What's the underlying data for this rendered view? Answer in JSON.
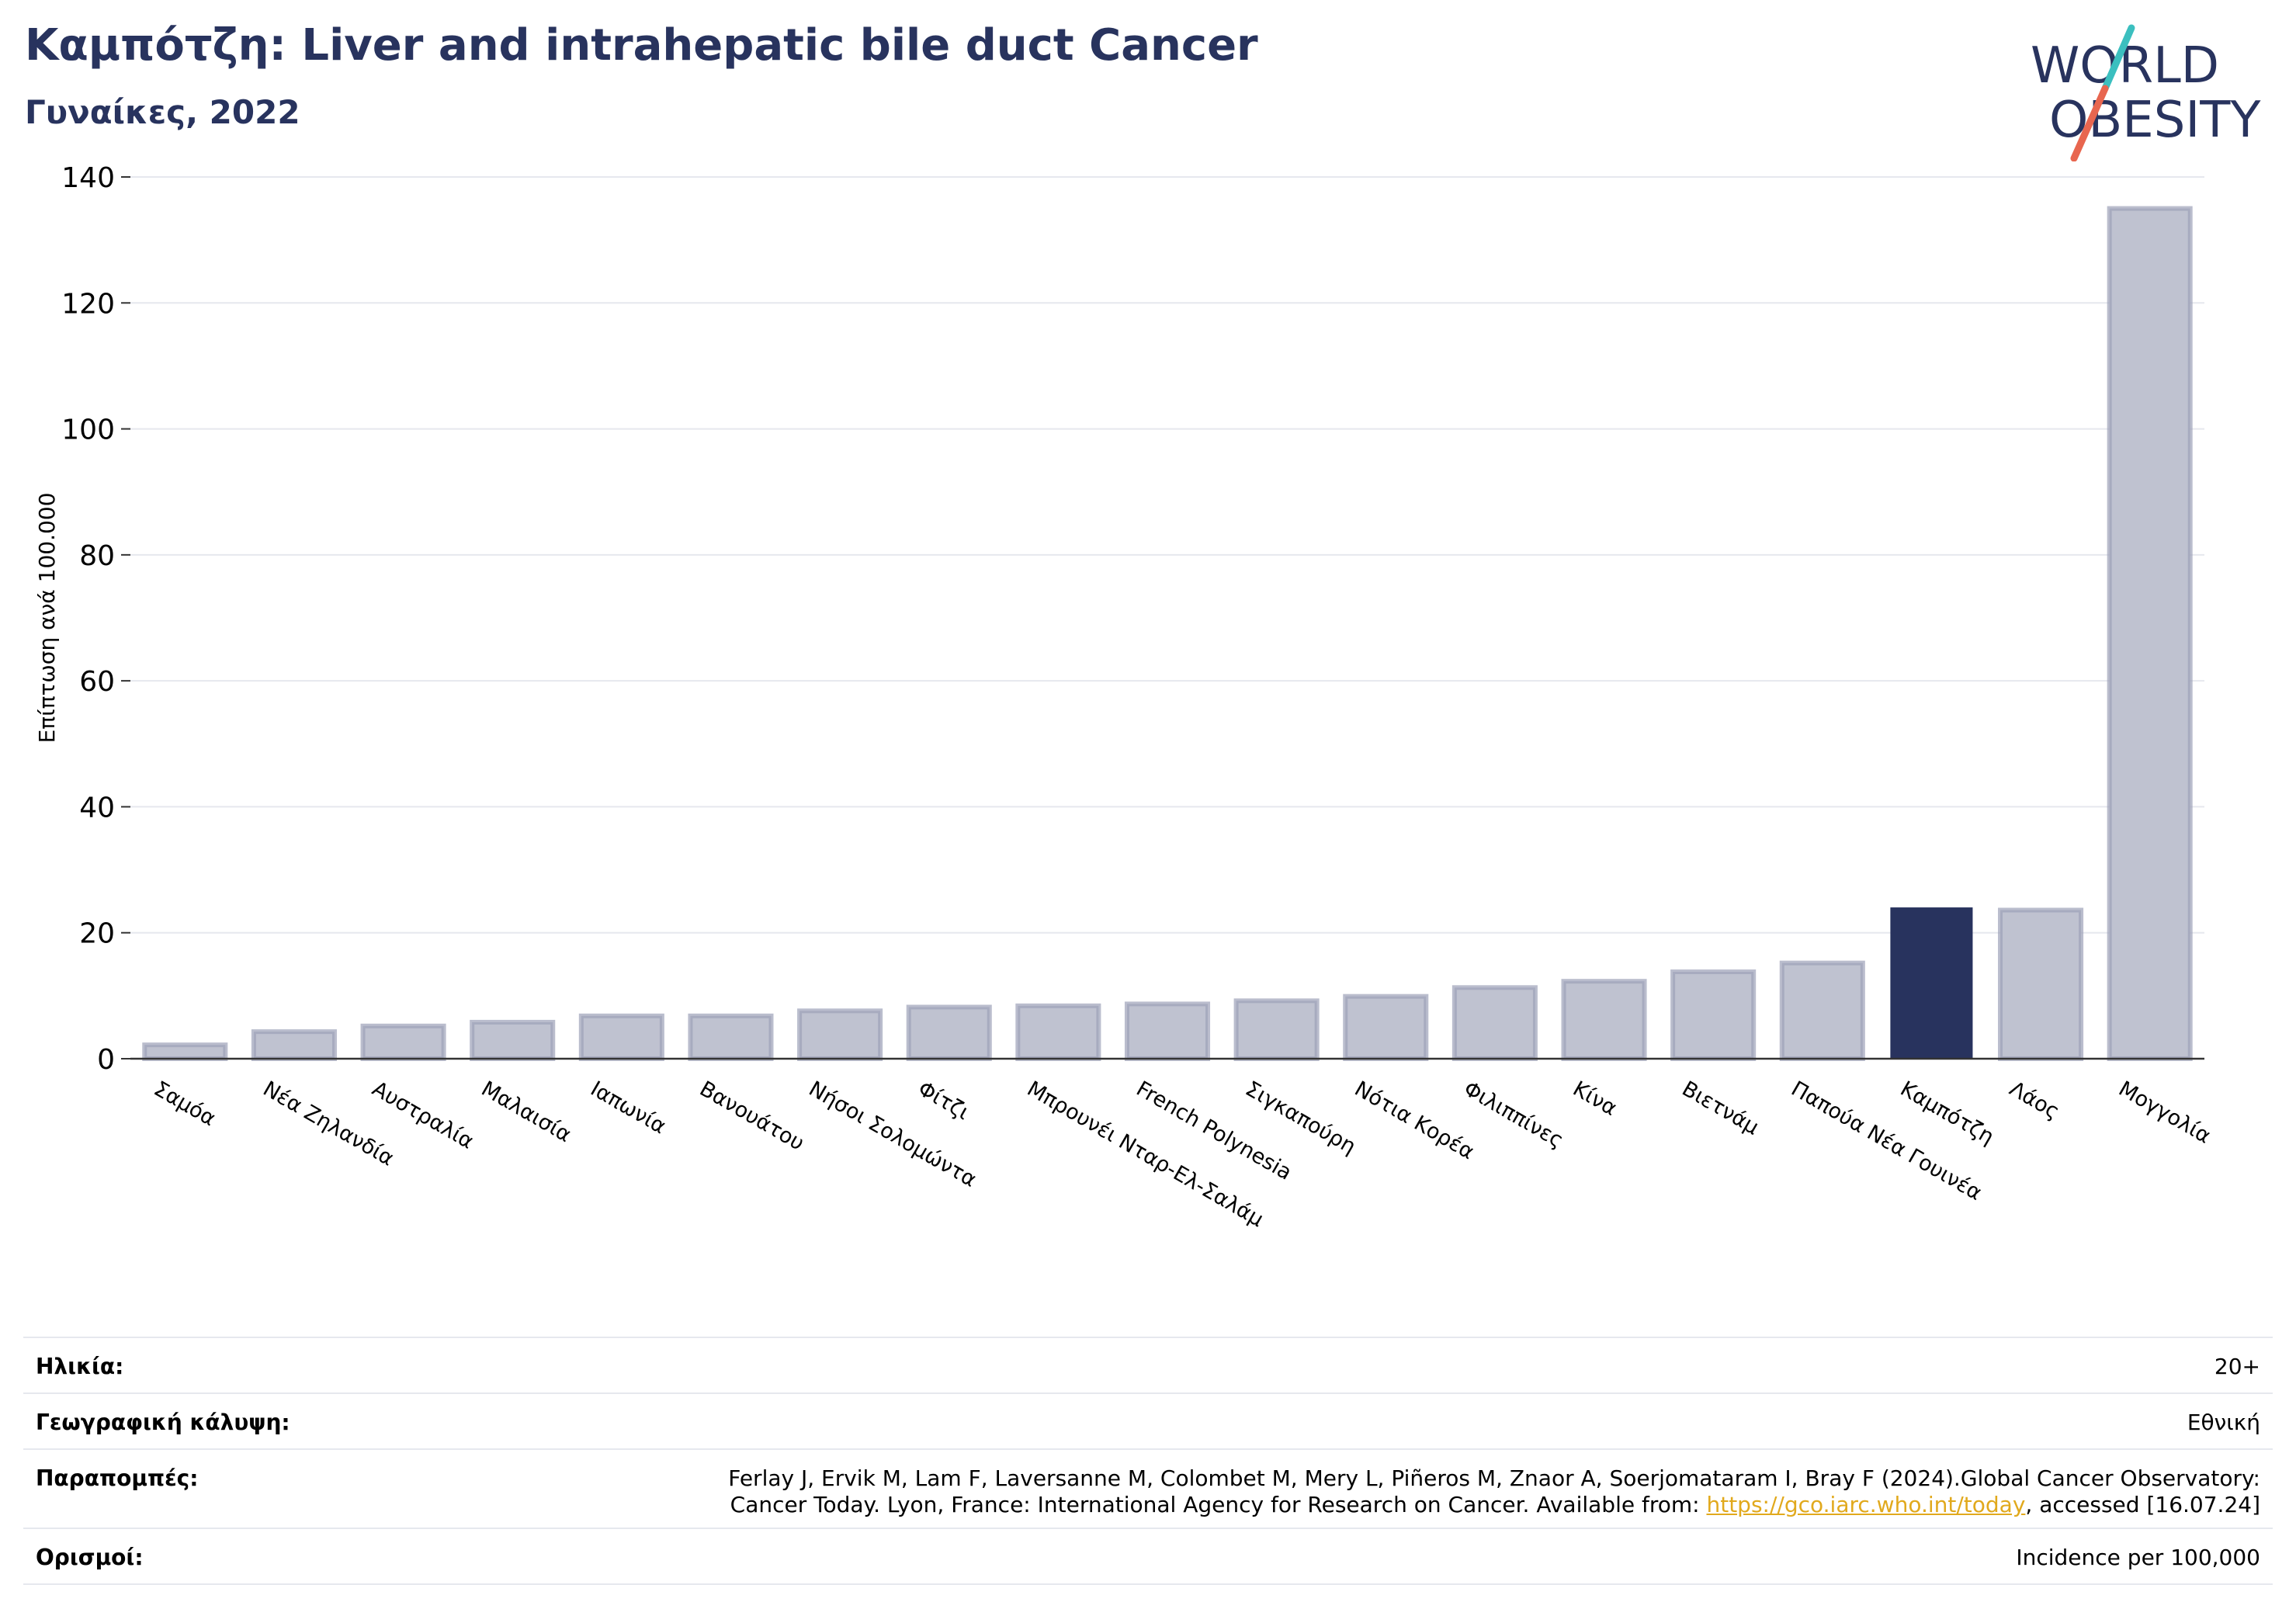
{
  "header": {
    "title": "Καμπότζη: Liver and intrahepatic bile duct Cancer",
    "subtitle": "Γυναίκες, 2022"
  },
  "logo": {
    "line1": "WORLD",
    "line2": "OBESITY",
    "primary_color": "#28335e",
    "accent_teal": "#3bbfbf",
    "accent_orange": "#e8664f"
  },
  "colors": {
    "bar": "#bfc2d0",
    "bar_edge": "#9da1b8",
    "highlight": "#28335e"
  },
  "chart_data": {
    "type": "bar",
    "title": "Καμπότζη: Liver and intrahepatic bile duct Cancer",
    "subtitle": "Γυναίκες, 2022",
    "xlabel": "",
    "ylabel": "Επίπτωση ανά 100.000",
    "ylim": [
      0,
      140
    ],
    "yticks": [
      0,
      20,
      40,
      60,
      80,
      100,
      120,
      140
    ],
    "grid": true,
    "highlight": "Καμπότζη",
    "categories": [
      "Σαμόα",
      "Νέα Ζηλανδία",
      "Αυστραλία",
      "Μαλαισία",
      "Ιαπωνία",
      "Βανουάτου",
      "Νήσοι Σολομώντα",
      "Φίτζι",
      "Μπρουνέι Νταρ-Ελ-Σαλάμ",
      "French Polynesia",
      "Σιγκαπούρη",
      "Νότια Κορέα",
      "Φιλιππίνες",
      "Κίνα",
      "Βιετνάμ",
      "Παπούα Νέα Γουινέα",
      "Καμπότζη",
      "Λάος",
      "Μογγολία"
    ],
    "values": [
      2.2,
      4.3,
      5.2,
      5.8,
      6.8,
      6.8,
      7.6,
      8.2,
      8.4,
      8.7,
      9.2,
      9.9,
      11.3,
      12.3,
      13.8,
      15.2,
      23.9,
      23.6,
      135.0
    ]
  },
  "footer": {
    "age_label": "Ηλικία:",
    "age_value": "20+",
    "coverage_label": "Γεωγραφική κάλυψη:",
    "coverage_value": "Εθνική",
    "references_label": "Παραπομπές:",
    "references_line1": "Ferlay J, Ervik M, Lam F, Laversanne M, Colombet M, Mery L, Piñeros M, Znaor A, Soerjomataram I, Bray F (2024).Global Cancer Observatory:",
    "references_line2_pre": "Cancer Today. Lyon, France: International Agency for Research on Cancer. Available from: ",
    "references_link": "https://gco.iarc.who.int/today",
    "references_line2_post": ", accessed [16.07.24]",
    "definitions_label": "Ορισμοί:",
    "definitions_value": "Incidence per 100,000"
  }
}
